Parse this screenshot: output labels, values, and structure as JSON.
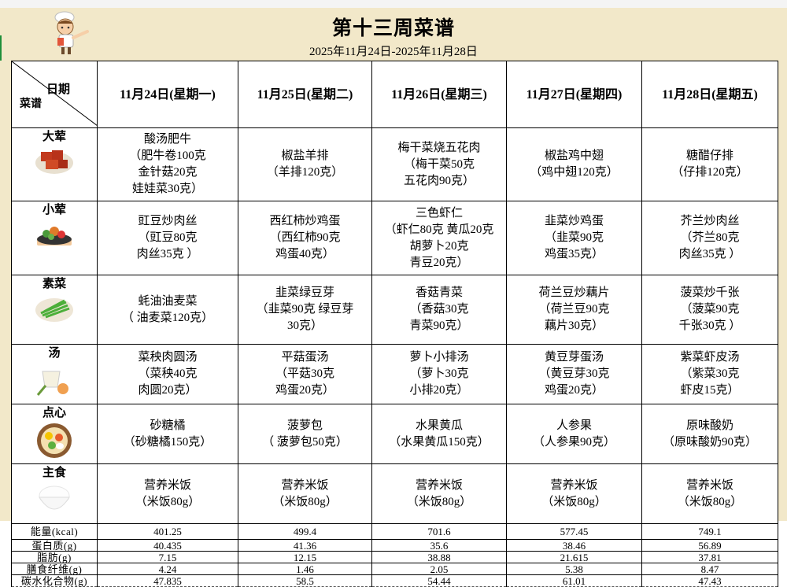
{
  "title": "第十三周菜谱",
  "subtitle": "2025年11月24日-2025年11月28日",
  "corner": {
    "top": "日期",
    "bottom": "菜谱"
  },
  "days": [
    "11月24日(星期一)",
    "11月25日(星期二)",
    "11月26日(星期三)",
    "11月27日(星期四)",
    "11月28日(星期五)"
  ],
  "rows": [
    {
      "category": "大荤",
      "icon": "braised-pork-icon",
      "cells": [
        "酸汤肥牛\n（肥牛卷100克\n金针菇20克\n娃娃菜30克）",
        "椒盐羊排\n（羊排120克）",
        "梅干菜烧五花肉\n（梅干菜50克\n五花肉90克）",
        "椒盐鸡中翅\n（鸡中翅120克）",
        "糖醋仔排\n（仔排120克）"
      ]
    },
    {
      "category": "小荤",
      "icon": "stir-fry-plate-icon",
      "cells": [
        "豇豆炒肉丝\n（豇豆80克\n肉丝35克 ）",
        "西红柿炒鸡蛋\n（西红柿90克\n鸡蛋40克）",
        "三色虾仁\n（虾仁80克 黄瓜20克\n胡萝卜20克\n青豆20克）",
        "韭菜炒鸡蛋\n（韭菜90克\n鸡蛋35克）",
        "芥兰炒肉丝\n（芥兰80克\n肉丝35克 ）"
      ]
    },
    {
      "category": "素菜",
      "icon": "green-vegetable-icon",
      "cells": [
        "蚝油油麦菜\n（ 油麦菜120克）",
        "韭菜绿豆芽\n（韭菜90克 绿豆芽\n30克）",
        "香菇青菜\n（香菇30克\n青菜90克）",
        "荷兰豆炒藕片\n（荷兰豆90克\n藕片30克）",
        "菠菜炒千张\n（菠菜90克\n千张30克 ）"
      ]
    },
    {
      "category": "汤",
      "icon": "soup-bowl-icon",
      "cells": [
        "菜秧肉圆汤\n（菜秧40克\n肉圆20克）",
        "平菇蛋汤\n（平菇30克\n鸡蛋20克）",
        "萝卜小排汤\n（萝卜30克\n小排20克）",
        "黄豆芽蛋汤\n（黄豆芽30克\n鸡蛋20克）",
        "紫菜虾皮汤\n（紫菜30克\n虾皮15克）"
      ]
    },
    {
      "category": "点心",
      "icon": "snack-plate-icon",
      "cells": [
        "砂糖橘\n（砂糖橘150克）",
        "菠萝包\n（ 菠萝包50克）",
        "水果黄瓜\n（水果黄瓜150克）",
        "人参果\n（人参果90克）",
        "原味酸奶\n（原味酸奶90克）"
      ]
    },
    {
      "category": "主食",
      "icon": "rice-bowl-icon",
      "cells": [
        "营养米饭\n（米饭80g）",
        "营养米饭\n（米饭80g）",
        "营养米饭\n（米饭80g）",
        "营养米饭\n（米饭80g）",
        "营养米饭\n（米饭80g）"
      ]
    }
  ],
  "nutrition": [
    {
      "label": "能量(kcal)",
      "values": [
        "401.25",
        "499.4",
        "701.6",
        "577.45",
        "749.1"
      ]
    },
    {
      "label": "蛋白质(g)",
      "values": [
        "40.435",
        "41.36",
        "35.6",
        "38.46",
        "56.89"
      ]
    },
    {
      "label": "脂肪(g)",
      "values": [
        "7.15",
        "12.15",
        "38.88",
        "21.615",
        "37.81"
      ]
    },
    {
      "label": "膳食纤维(g)",
      "values": [
        "4.24",
        "1.46",
        "2.05",
        "5.38",
        "8.47"
      ]
    },
    {
      "label": "碳水化合物(g)",
      "values": [
        "47.835",
        "58.5",
        "54.44",
        "61.01",
        "47.43"
      ]
    }
  ],
  "colors": {
    "background": "#f2e8c9",
    "border": "#000000"
  }
}
